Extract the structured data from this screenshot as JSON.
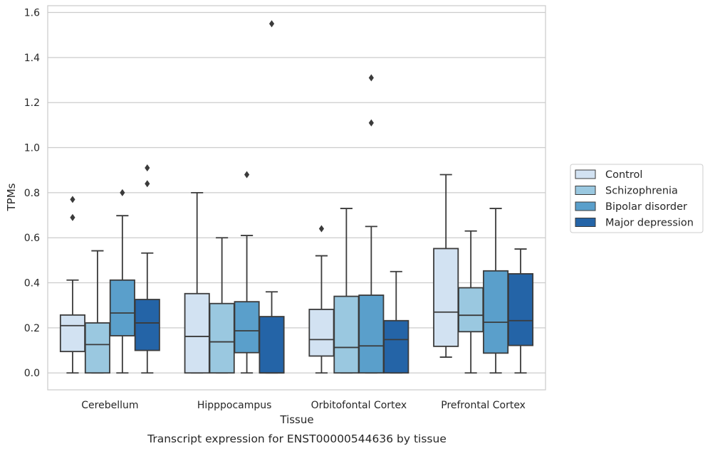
{
  "chart_data": {
    "type": "box",
    "caption": "Transcript expression for ENST00000544636 by tissue",
    "xlabel": "Tissue",
    "ylabel": "TPMs",
    "ylim": [
      -0.075,
      1.63
    ],
    "yticks": [
      0.0,
      0.2,
      0.4,
      0.6,
      0.8,
      1.0,
      1.2,
      1.4,
      1.6
    ],
    "ytick_labels": [
      "0.0",
      "0.2",
      "0.4",
      "0.6",
      "0.8",
      "1.0",
      "1.2",
      "1.4",
      "1.6"
    ],
    "grid": true,
    "legend_position": "right",
    "categories": [
      "Cerebellum",
      "Hipppocampus",
      "Orbitofontal Cortex",
      "Prefrontal Cortex"
    ],
    "series": [
      {
        "name": "Control",
        "color": "#d2e2f2",
        "boxes": [
          {
            "whisker_low": 0.0,
            "q1": 0.095,
            "median": 0.21,
            "q3": 0.257,
            "whisker_high": 0.412,
            "outliers": [
              0.69,
              0.77
            ]
          },
          {
            "whisker_low": 0.0,
            "q1": 0.0,
            "median": 0.162,
            "q3": 0.352,
            "whisker_high": 0.8,
            "outliers": []
          },
          {
            "whisker_low": 0.0,
            "q1": 0.075,
            "median": 0.148,
            "q3": 0.282,
            "whisker_high": 0.52,
            "outliers": [
              0.64
            ]
          },
          {
            "whisker_low": 0.07,
            "q1": 0.118,
            "median": 0.27,
            "q3": 0.552,
            "whisker_high": 0.88,
            "outliers": []
          }
        ]
      },
      {
        "name": "Schizophrenia",
        "color": "#9ac8e0",
        "boxes": [
          {
            "whisker_low": 0.0,
            "q1": 0.0,
            "median": 0.126,
            "q3": 0.222,
            "whisker_high": 0.542,
            "outliers": []
          },
          {
            "whisker_low": 0.0,
            "q1": 0.0,
            "median": 0.138,
            "q3": 0.308,
            "whisker_high": 0.6,
            "outliers": []
          },
          {
            "whisker_low": 0.0,
            "q1": 0.0,
            "median": 0.113,
            "q3": 0.34,
            "whisker_high": 0.73,
            "outliers": []
          },
          {
            "whisker_low": 0.0,
            "q1": 0.183,
            "median": 0.256,
            "q3": 0.378,
            "whisker_high": 0.63,
            "outliers": []
          }
        ]
      },
      {
        "name": "Bipolar disorder",
        "color": "#5a9fcb",
        "boxes": [
          {
            "whisker_low": 0.0,
            "q1": 0.165,
            "median": 0.266,
            "q3": 0.412,
            "whisker_high": 0.698,
            "outliers": [
              0.8
            ]
          },
          {
            "whisker_low": 0.0,
            "q1": 0.09,
            "median": 0.187,
            "q3": 0.316,
            "whisker_high": 0.61,
            "outliers": [
              0.88
            ]
          },
          {
            "whisker_low": 0.0,
            "q1": 0.0,
            "median": 0.12,
            "q3": 0.345,
            "whisker_high": 0.65,
            "outliers": [
              1.11,
              1.31
            ]
          },
          {
            "whisker_low": 0.0,
            "q1": 0.088,
            "median": 0.225,
            "q3": 0.453,
            "whisker_high": 0.73,
            "outliers": []
          }
        ]
      },
      {
        "name": "Major depression",
        "color": "#2464a7",
        "boxes": [
          {
            "whisker_low": 0.0,
            "q1": 0.1,
            "median": 0.222,
            "q3": 0.326,
            "whisker_high": 0.532,
            "outliers": [
              0.84,
              0.91
            ]
          },
          {
            "whisker_low": 0.0,
            "q1": 0.0,
            "median": 0.0,
            "q3": 0.25,
            "whisker_high": 0.36,
            "outliers": [
              1.55
            ]
          },
          {
            "whisker_low": 0.0,
            "q1": 0.0,
            "median": 0.148,
            "q3": 0.232,
            "whisker_high": 0.45,
            "outliers": []
          },
          {
            "whisker_low": 0.0,
            "q1": 0.122,
            "median": 0.232,
            "q3": 0.44,
            "whisker_high": 0.55,
            "outliers": []
          }
        ]
      }
    ]
  }
}
